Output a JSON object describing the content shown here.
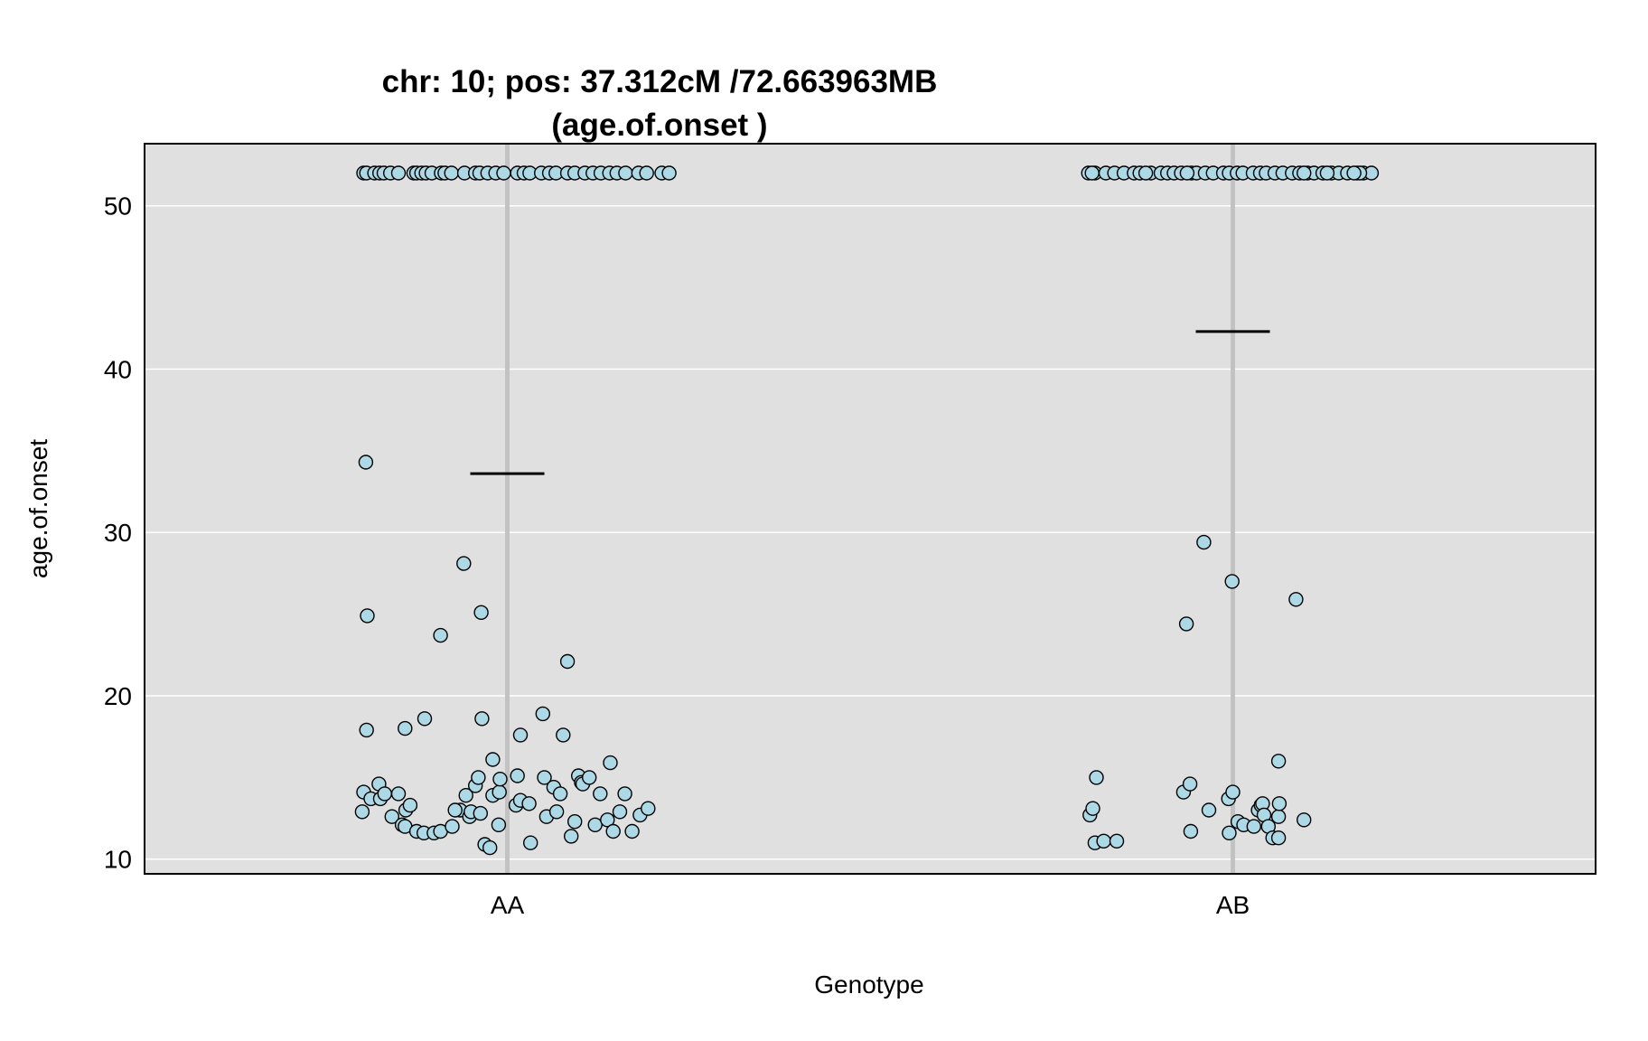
{
  "chart_data": {
    "type": "scatter",
    "title_line1": "chr: 10; pos: 37.312cM /72.663963MB",
    "title_line2": "(age.of.onset )",
    "xlabel": "Genotype",
    "ylabel": "age.of.onset",
    "categories": [
      "AA",
      "AB"
    ],
    "ylim": [
      9.1,
      53.8
    ],
    "yticks": [
      10,
      20,
      30,
      40,
      50
    ],
    "grid": true,
    "colors": {
      "panel": "#e0e0e0",
      "gridline": "#ffffff",
      "category_line": "#c2c2c2",
      "point_fill": "#add8e6",
      "point_stroke": "#000000",
      "mean_line": "#000000"
    },
    "means": [
      33.6,
      42.3
    ],
    "series": [
      {
        "category": "AA",
        "points": [
          {
            "x": -0.198,
            "y": 52
          },
          {
            "x": -0.194,
            "y": 52
          },
          {
            "x": -0.183,
            "y": 52
          },
          {
            "x": -0.176,
            "y": 52
          },
          {
            "x": -0.17,
            "y": 52
          },
          {
            "x": -0.161,
            "y": 52
          },
          {
            "x": -0.15,
            "y": 52
          },
          {
            "x": -0.129,
            "y": 52
          },
          {
            "x": -0.125,
            "y": 52
          },
          {
            "x": -0.118,
            "y": 52
          },
          {
            "x": -0.112,
            "y": 52
          },
          {
            "x": -0.104,
            "y": 52
          },
          {
            "x": -0.091,
            "y": 52
          },
          {
            "x": -0.086,
            "y": 52
          },
          {
            "x": -0.077,
            "y": 52
          },
          {
            "x": -0.059,
            "y": 52
          },
          {
            "x": -0.044,
            "y": 52
          },
          {
            "x": -0.038,
            "y": 52
          },
          {
            "x": -0.027,
            "y": 52
          },
          {
            "x": -0.016,
            "y": 52
          },
          {
            "x": -0.005,
            "y": 52
          },
          {
            "x": 0.014,
            "y": 52
          },
          {
            "x": 0.023,
            "y": 52
          },
          {
            "x": 0.031,
            "y": 52
          },
          {
            "x": 0.047,
            "y": 52
          },
          {
            "x": 0.058,
            "y": 52
          },
          {
            "x": 0.067,
            "y": 52
          },
          {
            "x": 0.083,
            "y": 52
          },
          {
            "x": 0.093,
            "y": 52
          },
          {
            "x": 0.107,
            "y": 52
          },
          {
            "x": 0.118,
            "y": 52
          },
          {
            "x": 0.129,
            "y": 52
          },
          {
            "x": 0.141,
            "y": 52
          },
          {
            "x": 0.151,
            "y": 52
          },
          {
            "x": 0.163,
            "y": 52
          },
          {
            "x": 0.181,
            "y": 52
          },
          {
            "x": 0.192,
            "y": 52
          },
          {
            "x": 0.213,
            "y": 52
          },
          {
            "x": 0.223,
            "y": 52
          },
          {
            "x": -0.195,
            "y": 34.3
          },
          {
            "x": -0.06,
            "y": 28.1
          },
          {
            "x": -0.193,
            "y": 24.9
          },
          {
            "x": -0.036,
            "y": 25.1
          },
          {
            "x": -0.092,
            "y": 23.7
          },
          {
            "x": 0.083,
            "y": 22.1
          },
          {
            "x": -0.194,
            "y": 17.9
          },
          {
            "x": -0.141,
            "y": 18.0
          },
          {
            "x": -0.114,
            "y": 18.6
          },
          {
            "x": -0.035,
            "y": 18.6
          },
          {
            "x": 0.018,
            "y": 17.6
          },
          {
            "x": 0.049,
            "y": 18.9
          },
          {
            "x": 0.077,
            "y": 17.6
          },
          {
            "x": -0.02,
            "y": 16.1
          },
          {
            "x": 0.142,
            "y": 15.9
          },
          {
            "x": -0.198,
            "y": 14.1
          },
          {
            "x": -0.188,
            "y": 13.7
          },
          {
            "x": -0.177,
            "y": 14.6
          },
          {
            "x": -0.175,
            "y": 13.7
          },
          {
            "x": -0.169,
            "y": 14.0
          },
          {
            "x": -0.159,
            "y": 12.6
          },
          {
            "x": -0.15,
            "y": 14.0
          },
          {
            "x": -0.145,
            "y": 12.1
          },
          {
            "x": -0.14,
            "y": 13.0
          },
          {
            "x": -0.134,
            "y": 13.3
          },
          {
            "x": -0.2,
            "y": 12.9
          },
          {
            "x": -0.141,
            "y": 12.0
          },
          {
            "x": -0.125,
            "y": 11.7
          },
          {
            "x": -0.115,
            "y": 11.6
          },
          {
            "x": -0.101,
            "y": 11.6
          },
          {
            "x": -0.092,
            "y": 11.7
          },
          {
            "x": -0.076,
            "y": 12.0
          },
          {
            "x": -0.065,
            "y": 13.0
          },
          {
            "x": -0.057,
            "y": 13.9
          },
          {
            "x": -0.052,
            "y": 12.6
          },
          {
            "x": -0.05,
            "y": 12.9
          },
          {
            "x": -0.044,
            "y": 14.5
          },
          {
            "x": -0.04,
            "y": 15.0
          },
          {
            "x": -0.037,
            "y": 12.8
          },
          {
            "x": -0.031,
            "y": 10.9
          },
          {
            "x": -0.024,
            "y": 10.7
          },
          {
            "x": -0.02,
            "y": 13.9
          },
          {
            "x": -0.012,
            "y": 12.1
          },
          {
            "x": -0.011,
            "y": 14.1
          },
          {
            "x": -0.01,
            "y": 14.9
          },
          {
            "x": 0.012,
            "y": 13.3
          },
          {
            "x": 0.014,
            "y": 15.1
          },
          {
            "x": 0.018,
            "y": 13.6
          },
          {
            "x": 0.032,
            "y": 11.0
          },
          {
            "x": 0.03,
            "y": 13.4
          },
          {
            "x": 0.051,
            "y": 15.0
          },
          {
            "x": 0.054,
            "y": 12.6
          },
          {
            "x": 0.064,
            "y": 14.4
          },
          {
            "x": 0.068,
            "y": 12.9
          },
          {
            "x": 0.073,
            "y": 14.0
          },
          {
            "x": 0.088,
            "y": 11.4
          },
          {
            "x": 0.093,
            "y": 12.3
          },
          {
            "x": 0.098,
            "y": 15.1
          },
          {
            "x": 0.102,
            "y": 14.7
          },
          {
            "x": 0.104,
            "y": 14.6
          },
          {
            "x": 0.113,
            "y": 15.0
          },
          {
            "x": 0.121,
            "y": 12.1
          },
          {
            "x": 0.128,
            "y": 14.0
          },
          {
            "x": 0.138,
            "y": 12.4
          },
          {
            "x": 0.146,
            "y": 11.7
          },
          {
            "x": 0.155,
            "y": 12.9
          },
          {
            "x": 0.162,
            "y": 14.0
          },
          {
            "x": 0.172,
            "y": 11.7
          },
          {
            "x": 0.183,
            "y": 12.7
          },
          {
            "x": 0.194,
            "y": 13.1
          },
          {
            "x": -0.072,
            "y": 13.0
          }
        ]
      },
      {
        "category": "AB",
        "points": [
          {
            "x": -0.199,
            "y": 52
          },
          {
            "x": -0.19,
            "y": 52
          },
          {
            "x": -0.175,
            "y": 52
          },
          {
            "x": -0.163,
            "y": 52
          },
          {
            "x": -0.15,
            "y": 52
          },
          {
            "x": -0.136,
            "y": 52
          },
          {
            "x": -0.128,
            "y": 52
          },
          {
            "x": -0.113,
            "y": 52
          },
          {
            "x": -0.099,
            "y": 52
          },
          {
            "x": -0.09,
            "y": 52
          },
          {
            "x": -0.081,
            "y": 52
          },
          {
            "x": -0.071,
            "y": 52
          },
          {
            "x": -0.057,
            "y": 52
          },
          {
            "x": -0.05,
            "y": 52
          },
          {
            "x": -0.038,
            "y": 52
          },
          {
            "x": -0.027,
            "y": 52
          },
          {
            "x": -0.013,
            "y": 52
          },
          {
            "x": -0.005,
            "y": 52
          },
          {
            "x": 0.006,
            "y": 52
          },
          {
            "x": 0.014,
            "y": 52
          },
          {
            "x": 0.028,
            "y": 52
          },
          {
            "x": 0.038,
            "y": 52
          },
          {
            "x": 0.046,
            "y": 52
          },
          {
            "x": 0.058,
            "y": 52
          },
          {
            "x": 0.069,
            "y": 52
          },
          {
            "x": 0.082,
            "y": 52
          },
          {
            "x": 0.092,
            "y": 52
          },
          {
            "x": 0.103,
            "y": 52
          },
          {
            "x": 0.112,
            "y": 52
          },
          {
            "x": 0.124,
            "y": 52
          },
          {
            "x": 0.136,
            "y": 52
          },
          {
            "x": 0.146,
            "y": 52
          },
          {
            "x": 0.158,
            "y": 52
          },
          {
            "x": 0.171,
            "y": 52
          },
          {
            "x": 0.18,
            "y": 52
          },
          {
            "x": 0.191,
            "y": 52
          },
          {
            "x": -0.194,
            "y": 52
          },
          {
            "x": -0.12,
            "y": 52
          },
          {
            "x": -0.063,
            "y": 52
          },
          {
            "x": 0.13,
            "y": 52
          },
          {
            "x": 0.175,
            "y": 52
          },
          {
            "x": 0.167,
            "y": 52
          },
          {
            "x": 0.098,
            "y": 52
          },
          {
            "x": -0.04,
            "y": 29.4
          },
          {
            "x": -0.001,
            "y": 27.0
          },
          {
            "x": -0.064,
            "y": 24.4
          },
          {
            "x": 0.087,
            "y": 25.9
          },
          {
            "x": 0.063,
            "y": 16.0
          },
          {
            "x": -0.188,
            "y": 15.0
          },
          {
            "x": -0.197,
            "y": 12.7
          },
          {
            "x": -0.193,
            "y": 13.1
          },
          {
            "x": -0.19,
            "y": 11.0
          },
          {
            "x": -0.178,
            "y": 11.1
          },
          {
            "x": -0.16,
            "y": 11.1
          },
          {
            "x": -0.068,
            "y": 14.1
          },
          {
            "x": -0.059,
            "y": 14.6
          },
          {
            "x": -0.058,
            "y": 11.7
          },
          {
            "x": -0.033,
            "y": 13.0
          },
          {
            "x": -0.006,
            "y": 13.7
          },
          {
            "x": 0.0,
            "y": 14.1
          },
          {
            "x": -0.005,
            "y": 11.6
          },
          {
            "x": 0.007,
            "y": 12.3
          },
          {
            "x": 0.015,
            "y": 12.1
          },
          {
            "x": 0.029,
            "y": 12.0
          },
          {
            "x": 0.035,
            "y": 13.0
          },
          {
            "x": 0.039,
            "y": 13.3
          },
          {
            "x": 0.041,
            "y": 13.4
          },
          {
            "x": 0.043,
            "y": 12.7
          },
          {
            "x": 0.049,
            "y": 12.0
          },
          {
            "x": 0.055,
            "y": 11.3
          },
          {
            "x": 0.063,
            "y": 11.3
          },
          {
            "x": 0.063,
            "y": 12.6
          },
          {
            "x": 0.064,
            "y": 13.4
          },
          {
            "x": 0.098,
            "y": 12.4
          }
        ]
      }
    ]
  }
}
